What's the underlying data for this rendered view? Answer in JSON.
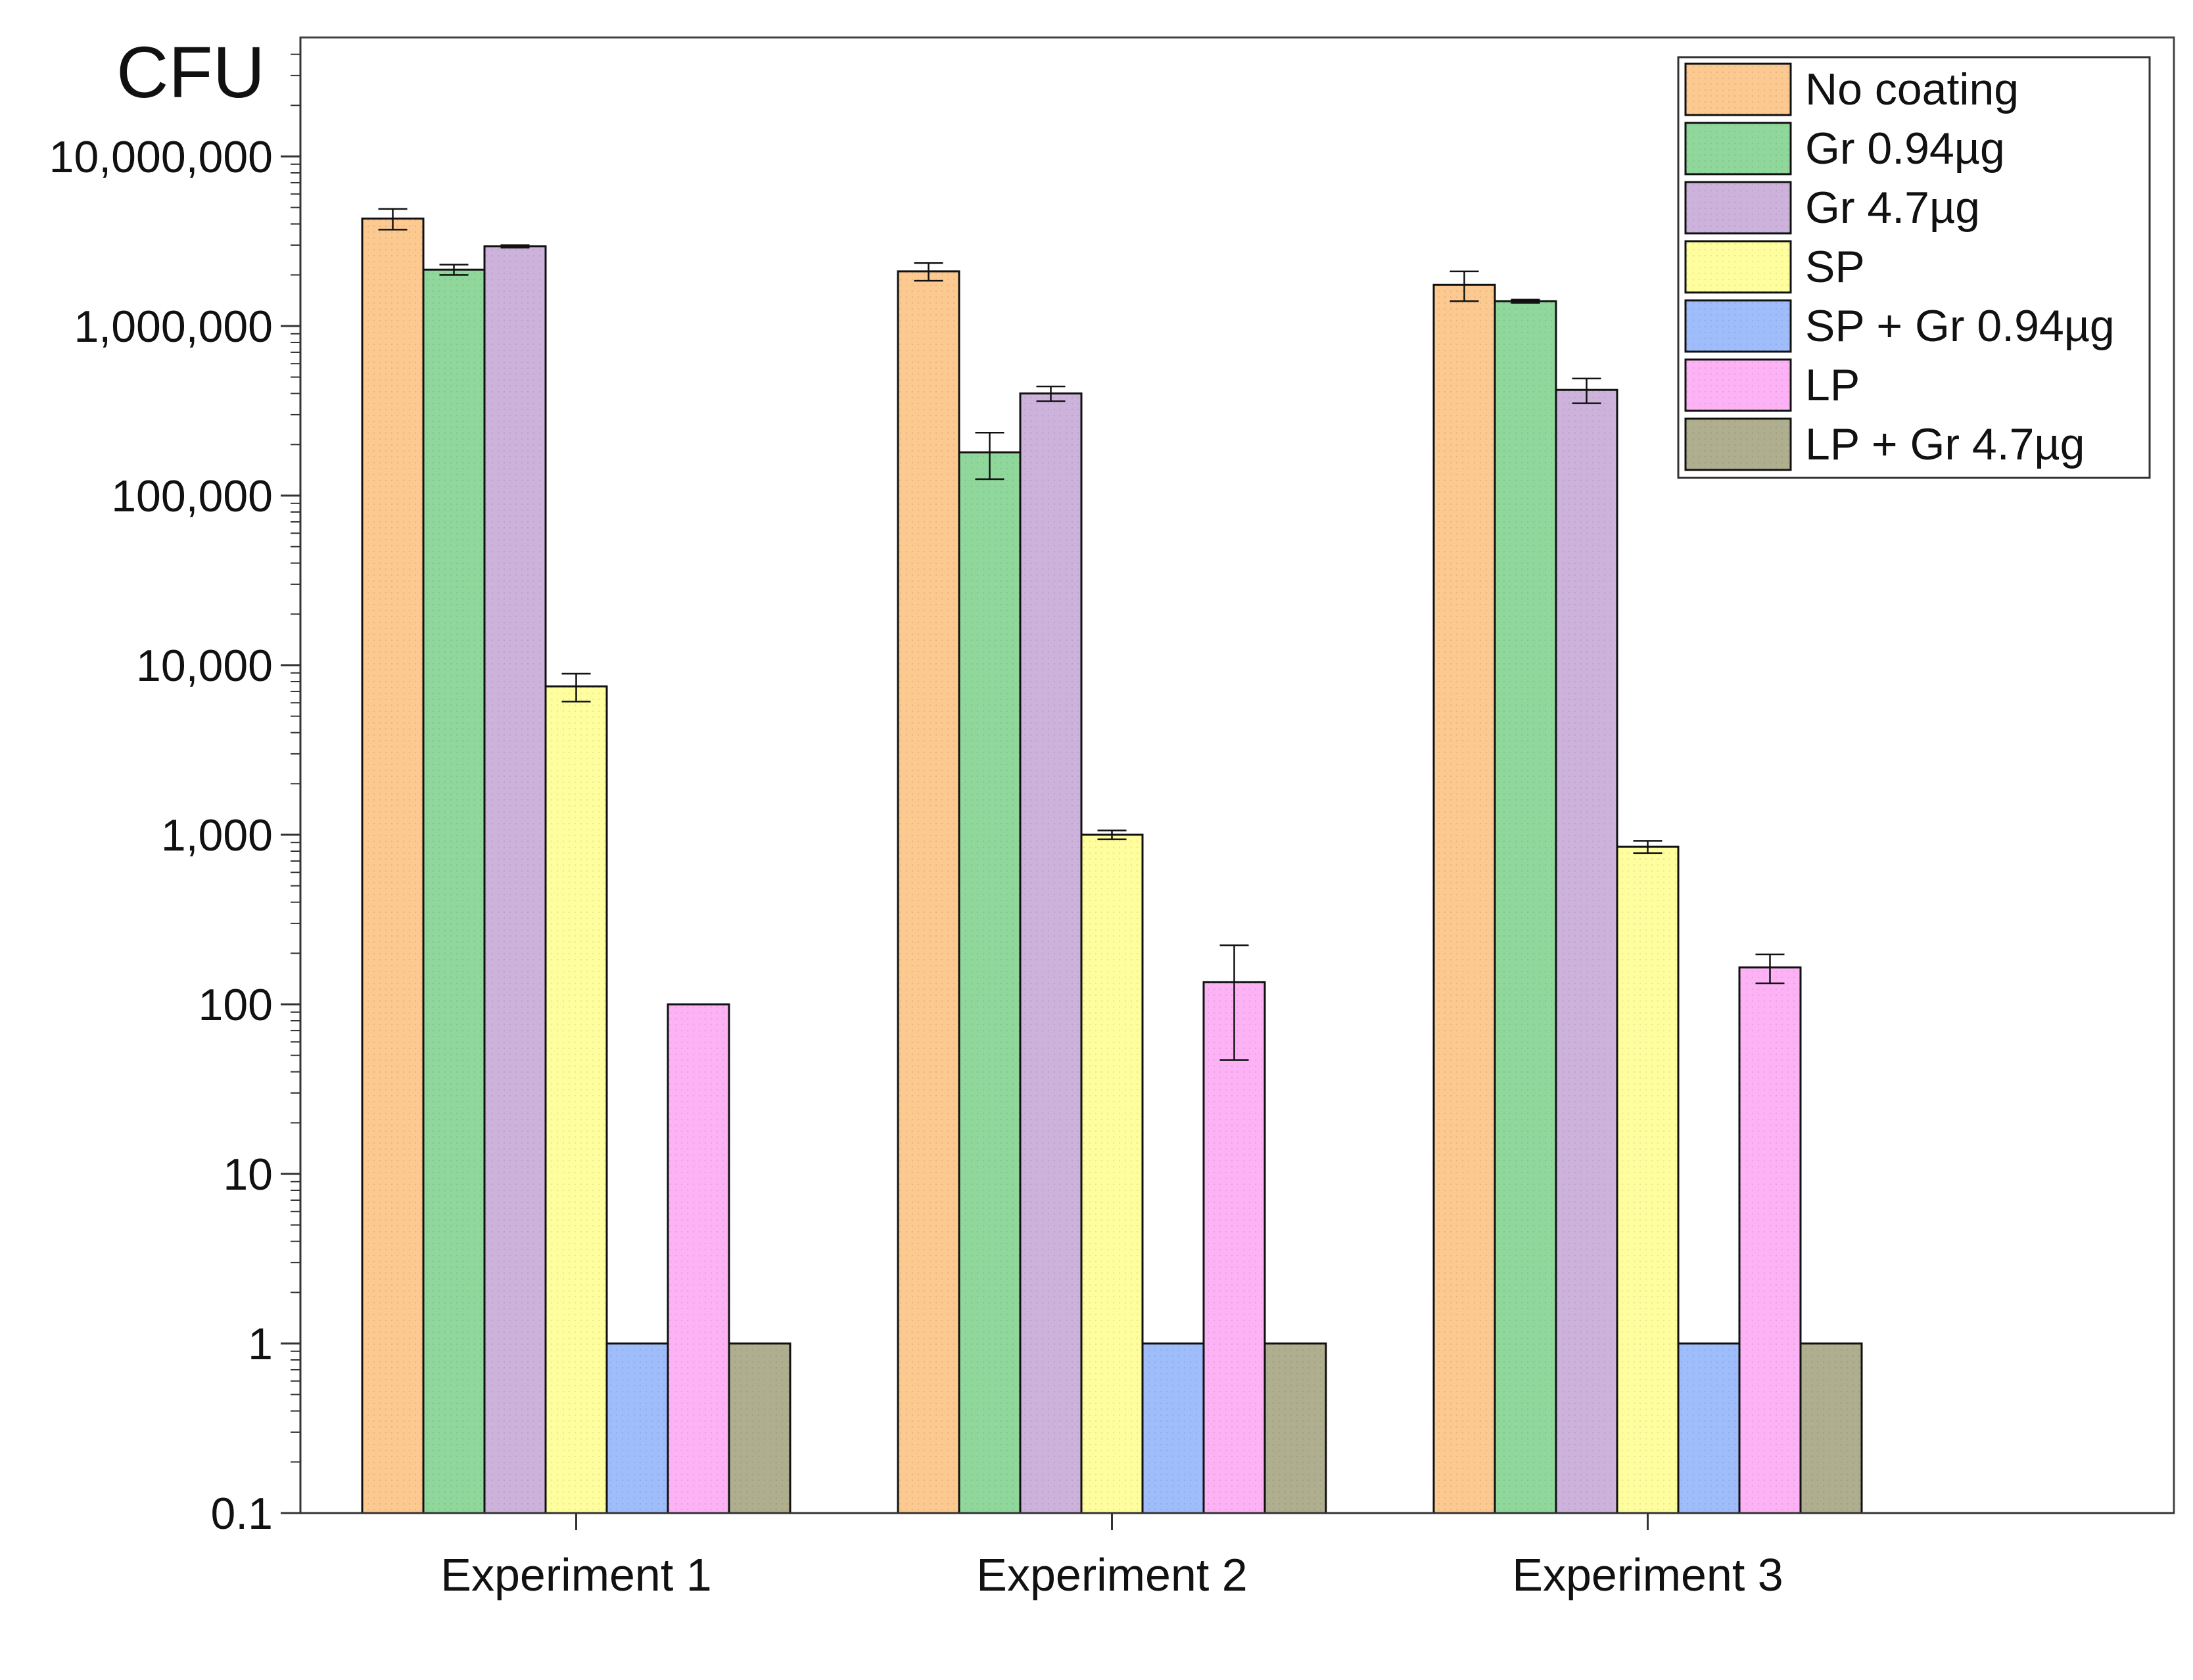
{
  "chart_data": {
    "type": "bar",
    "title": "",
    "ylabel": "CFU",
    "xlabel": "",
    "yscale": "log",
    "ylim": [
      0.1,
      50000000
    ],
    "yticks": [
      0.1,
      1,
      10,
      100,
      1000,
      10000,
      100000,
      1000000,
      10000000
    ],
    "ytick_labels": [
      "0.1",
      "1",
      "10",
      "100",
      "1,000",
      "10,000",
      "100,000",
      "1,000,000",
      "10,000,000"
    ],
    "categories": [
      "Experiment 1",
      "Experiment 2",
      "Experiment 3"
    ],
    "legend_position": "top-right",
    "series": [
      {
        "name": "No coating",
        "color": "#fcc990",
        "values": [
          4300000,
          2100000,
          1750000
        ],
        "errors": [
          600000,
          250000,
          350000
        ]
      },
      {
        "name": "Gr 0.94µg",
        "color": "#90d79c",
        "values": [
          2150000,
          180000,
          1400000
        ],
        "errors": [
          150000,
          55000,
          30000
        ]
      },
      {
        "name": "Gr 4.7µg",
        "color": "#cdb2dc",
        "values": [
          2950000,
          400000,
          420000
        ],
        "errors": [
          50000,
          40000,
          70000
        ]
      },
      {
        "name": "SP",
        "color": "#fefe9e",
        "values": [
          7500,
          1000,
          850
        ],
        "errors": [
          1400,
          60,
          70
        ]
      },
      {
        "name": "SP + Gr 0.94µg",
        "color": "#9ebdfa",
        "values": [
          1,
          1,
          1
        ],
        "errors": [
          0,
          0,
          0
        ]
      },
      {
        "name": "LP",
        "color": "#fcb2f5",
        "values": [
          100,
          135,
          165
        ],
        "errors": [
          0,
          88,
          32
        ]
      },
      {
        "name": "LP + Gr 4.7µg",
        "color": "#afae8f",
        "values": [
          1,
          1,
          1
        ],
        "errors": [
          0,
          0,
          0
        ]
      }
    ]
  }
}
